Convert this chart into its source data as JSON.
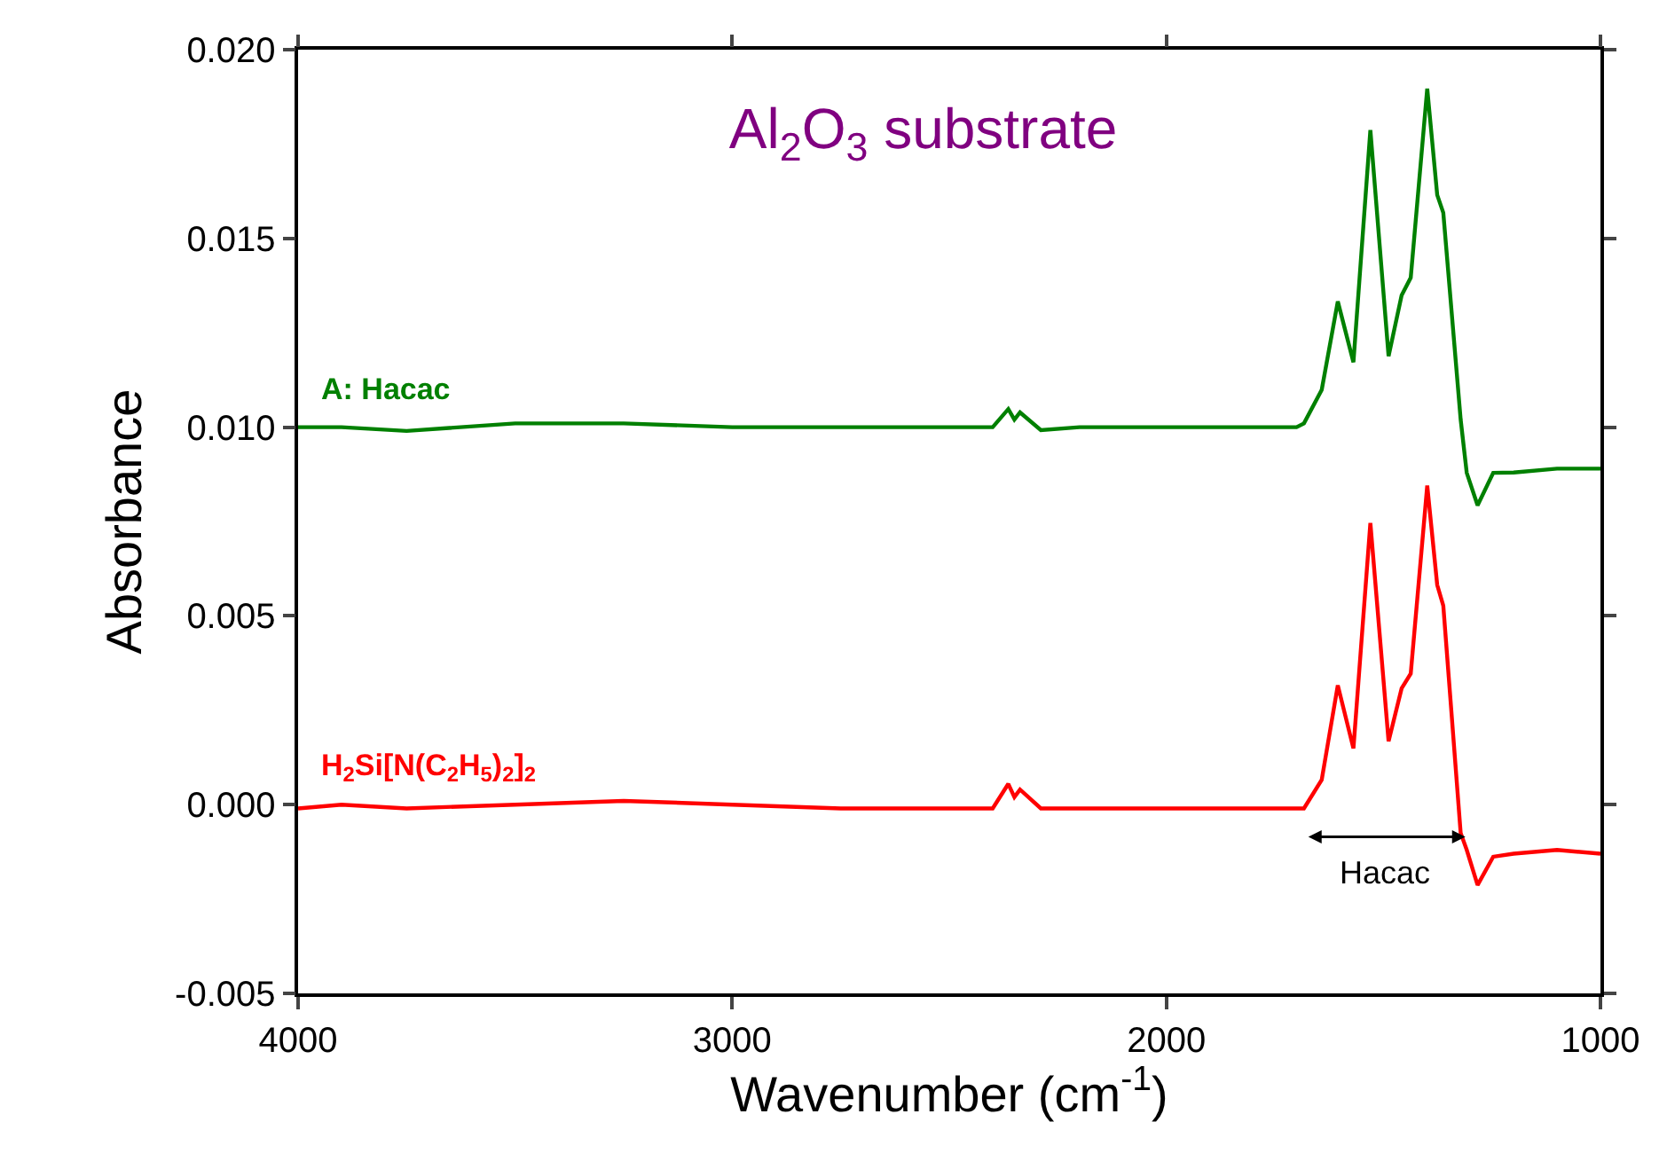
{
  "chart_data": {
    "type": "line",
    "title": "Al$_{2}$O$_{3}$ substrate",
    "xlabel": "Wavenumber (cm$^{-1}$)",
    "ylabel": "Absorbance",
    "x": [
      4000,
      3900,
      3750,
      3500,
      3250,
      3000,
      2750,
      2500,
      2400,
      2364,
      2350,
      2337,
      2289,
      2200,
      2000,
      1800,
      1700,
      1683,
      1642,
      1605,
      1569,
      1530,
      1488,
      1458,
      1437,
      1399,
      1376,
      1362,
      1322,
      1308,
      1283,
      1247,
      1200,
      1100,
      1000
    ],
    "series": [
      {
        "name": "A: Hacac",
        "color": "#008000",
        "values": [
          0.01,
          0.01,
          0.0099,
          0.0101,
          0.0101,
          0.01,
          0.01,
          0.01,
          0.01,
          0.01048,
          0.0102,
          0.01039,
          0.00992,
          0.01,
          0.01,
          0.01,
          0.01,
          0.0101,
          0.01099,
          0.01333,
          0.01172,
          0.01787,
          0.01188,
          0.01349,
          0.01396,
          0.01897,
          0.01615,
          0.01568,
          0.0102,
          0.00879,
          0.00793,
          0.00879,
          0.0088,
          0.0089,
          0.0089
        ]
      },
      {
        "name": "H$_{2}$Si[N(C$_{2}$H$_{5}$)$_{2}$]$_{2}$",
        "color": "#ff0000",
        "values": [
          -0.0001,
          0.0,
          -0.0001,
          0.0,
          0.0001,
          0.0,
          -0.0001,
          -0.0001,
          -0.0001,
          0.00055,
          0.0002,
          0.0004,
          -0.0001,
          -0.0001,
          -0.0001,
          -0.0001,
          -0.0001,
          -0.0001,
          0.00066,
          0.00316,
          0.00149,
          0.00746,
          0.00168,
          0.00308,
          0.00347,
          0.00845,
          0.00582,
          0.00527,
          -0.00075,
          -0.0012,
          -0.00213,
          -0.00138,
          -0.0013,
          -0.0012,
          -0.0013
        ]
      }
    ],
    "annotations": [
      "Hacac"
    ],
    "xlim": [
      4000,
      1000
    ],
    "xticks": [
      4000,
      3000,
      2000,
      1000
    ],
    "ylim": [
      -0.005,
      0.02
    ],
    "yticks": [
      {
        "value": -0.005,
        "label": "-0.005"
      },
      {
        "value": 0.0,
        "label": "0.000"
      },
      {
        "value": 0.005,
        "label": "0.005"
      },
      {
        "value": 0.01,
        "label": "0.010"
      },
      {
        "value": 0.015,
        "label": "0.015"
      },
      {
        "value": 0.02,
        "label": "0.020"
      }
    ],
    "grid": false,
    "legend": false,
    "marker": "none",
    "line_style": "solid"
  }
}
